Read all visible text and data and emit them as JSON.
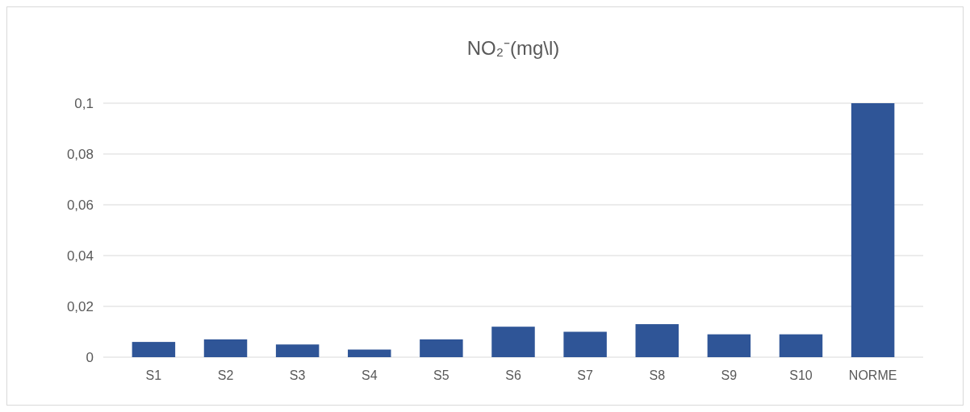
{
  "chart_data": {
    "type": "bar",
    "title": "NO₂⁻(mg\\l)",
    "categories": [
      "S1",
      "S2",
      "S3",
      "S4",
      "S5",
      "S6",
      "S7",
      "S8",
      "S9",
      "S10",
      "NORME"
    ],
    "values": [
      0.006,
      0.007,
      0.005,
      0.003,
      0.007,
      0.012,
      0.01,
      0.013,
      0.009,
      0.009,
      0.1
    ],
    "color": "#2f5597",
    "ylim": [
      0,
      0.1
    ],
    "yticks": [
      0,
      {
        "value": 0.02,
        "label": "0,02"
      },
      {
        "value": 0.04,
        "label": "0,04"
      },
      {
        "value": 0.06,
        "label": "0,06"
      },
      {
        "value": 0.08,
        "label": "0,08"
      },
      {
        "value": 0.1,
        "label": "0,1"
      }
    ],
    "grid": "y"
  }
}
